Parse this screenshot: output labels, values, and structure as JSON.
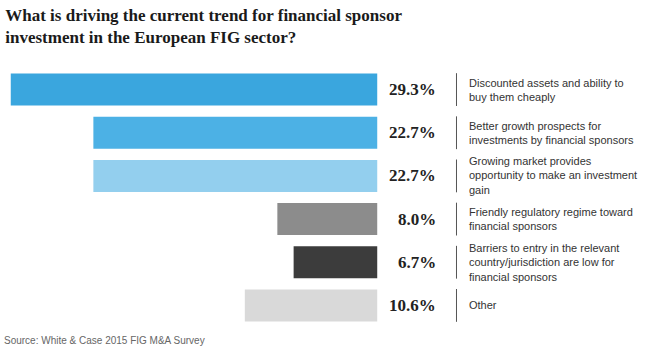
{
  "chart_data": {
    "type": "bar",
    "title": "What is driving the current trend for financial sponsor investment in the European FIG sector?",
    "categories": [
      "Discounted assets and ability to buy them cheaply",
      "Better growth prospects for investments by financial sponsors",
      "Growing market provides opportunity to make an investment gain",
      "Friendly regulatory regime toward financial sponsors",
      "Barriers to entry in the relevant country/jurisdiction are low for financial sponsors",
      "Other"
    ],
    "values": [
      29.3,
      22.7,
      22.7,
      8.0,
      6.7,
      10.6
    ],
    "value_labels": [
      "29.3%",
      "22.7%",
      "22.7%",
      "8.0%",
      "6.7%",
      "10.6%"
    ],
    "colors": [
      "#3aa6de",
      "#4cb1e5",
      "#93cfee",
      "#8c8c8c",
      "#3c3c3c",
      "#d9d9d9"
    ],
    "orientation": "horizontal",
    "xlim": [
      30,
      0
    ],
    "data_labels": true,
    "tick_labels": false,
    "grid": false,
    "source": "Source: White & Case 2015 FIG M&A Survey"
  }
}
